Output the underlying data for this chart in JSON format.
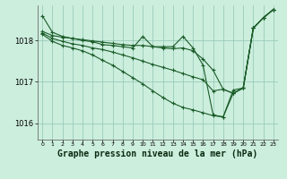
{
  "bg_color": "#cceedd",
  "grid_color": "#99ccbb",
  "line_color": "#1a5c28",
  "xlabel": "Graphe pression niveau de la mer (hPa)",
  "xlabel_fontsize": 7,
  "xlim": [
    -0.5,
    23.5
  ],
  "ylim": [
    1015.6,
    1018.85
  ],
  "yticks": [
    1016,
    1017,
    1018
  ],
  "xticks": [
    0,
    1,
    2,
    3,
    4,
    5,
    6,
    7,
    8,
    9,
    10,
    11,
    12,
    13,
    14,
    15,
    16,
    17,
    18,
    19,
    20,
    21,
    22,
    23
  ],
  "s1": [
    1018.6,
    1018.2,
    1018.1,
    1018.05,
    1018.0,
    1017.97,
    1017.9,
    1017.88,
    1017.85,
    1017.82,
    1018.1,
    1017.85,
    1017.85,
    1017.85,
    1018.1,
    1017.82,
    1017.4,
    1016.2,
    1016.15,
    1016.8,
    1016.85,
    1018.3,
    1018.55,
    1018.75
  ],
  "s2": [
    1018.22,
    1018.12,
    1018.08,
    1018.05,
    1018.02,
    1017.99,
    1017.96,
    1017.93,
    1017.9,
    1017.88,
    1017.88,
    1017.85,
    1017.82,
    1017.8,
    1017.82,
    1017.75,
    1017.55,
    1017.28,
    1016.82,
    1016.72,
    1016.85,
    1018.3,
    1018.55,
    1018.75
  ],
  "s3": [
    1018.18,
    1018.05,
    1017.98,
    1017.92,
    1017.88,
    1017.82,
    1017.78,
    1017.72,
    1017.65,
    1017.58,
    1017.5,
    1017.42,
    1017.35,
    1017.28,
    1017.2,
    1017.12,
    1017.05,
    1016.78,
    1016.82,
    1016.72,
    1016.85,
    1018.3,
    1018.55,
    1018.75
  ],
  "s4": [
    1018.15,
    1017.98,
    1017.88,
    1017.82,
    1017.75,
    1017.65,
    1017.52,
    1017.4,
    1017.25,
    1017.1,
    1016.95,
    1016.78,
    1016.62,
    1016.48,
    1016.38,
    1016.32,
    1016.25,
    1016.18,
    1016.15,
    1016.72,
    1016.85,
    1018.3,
    1018.55,
    1018.75
  ]
}
